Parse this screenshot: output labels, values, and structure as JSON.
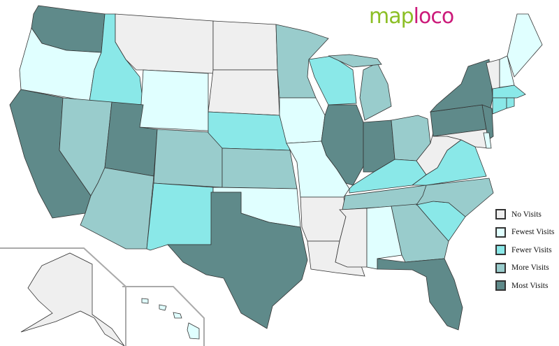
{
  "logo": {
    "part1": "map",
    "part2": "loco",
    "color1": "#8cbf26",
    "color2": "#cc1a7a"
  },
  "legend": [
    {
      "key": "none",
      "label": "No Visits",
      "color": "#efefef"
    },
    {
      "key": "fewest",
      "label": "Fewest Visits",
      "color": "#e0ffff"
    },
    {
      "key": "fewer",
      "label": "Fewer Visits",
      "color": "#8ae8e8"
    },
    {
      "key": "more",
      "label": "More Visits",
      "color": "#99cccc"
    },
    {
      "key": "most",
      "label": "Most Visits",
      "color": "#5f8a8a"
    }
  ],
  "states": {
    "MT": "none",
    "ND": "none",
    "SD": "none",
    "AR": "none",
    "LA": "none",
    "MS": "none",
    "WV": "none",
    "MD": "none",
    "VT": "none",
    "AK": "none",
    "OR": "fewest",
    "WY": "fewest",
    "IA": "fewest",
    "MO": "fewest",
    "OK": "fewest",
    "AL": "fewest",
    "NH": "fewest",
    "ME": "fewest",
    "DE": "fewest",
    "HI": "fewest",
    "ID": "fewer",
    "NE": "fewer",
    "WI": "fewer",
    "KY": "fewer",
    "VA": "fewer",
    "NM": "fewer",
    "SC": "fewer",
    "MA": "fewer",
    "CT": "fewer",
    "RI": "fewer",
    "NV": "more",
    "CO": "more",
    "KS": "more",
    "MN": "more",
    "MI": "more",
    "OH": "more",
    "AZ": "more",
    "TN": "more",
    "NC": "more",
    "GA": "more",
    "WA": "most",
    "CA": "most",
    "UT": "most",
    "TX": "most",
    "IL": "most",
    "IN": "most",
    "NY": "most",
    "PA": "most",
    "NJ": "most",
    "FL": "most"
  }
}
